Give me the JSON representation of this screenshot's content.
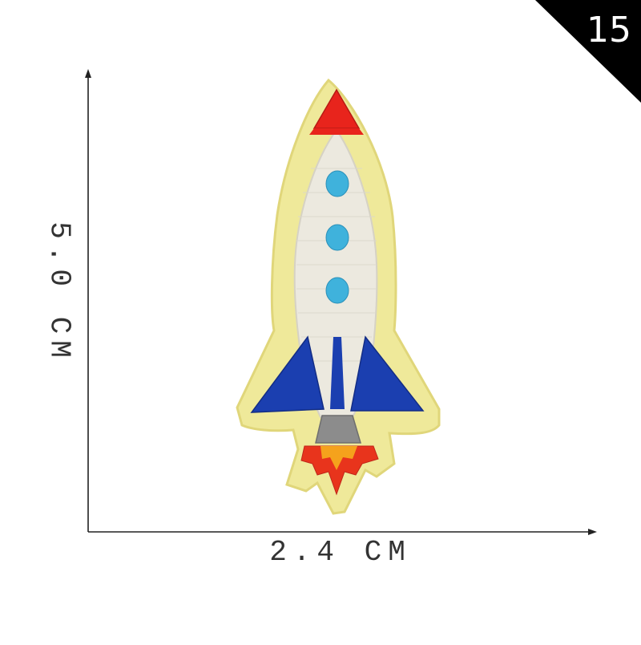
{
  "badge": {
    "number": "15",
    "color": "#000000"
  },
  "dimensions": {
    "width_label": "2.4 CM",
    "height_label": "5.0 CM"
  },
  "patch": {
    "subject": "rocket embroidered patch",
    "colors": {
      "felt": "#efe99a",
      "body": "#ece9df",
      "nose": "#e8241c",
      "fins": "#1b3fb0",
      "windows": "#3fb2dc",
      "nozzle": "#8c8c8c",
      "flame_outer": "#e8341c",
      "flame_inner": "#f5a21c"
    },
    "window_count": 3
  }
}
